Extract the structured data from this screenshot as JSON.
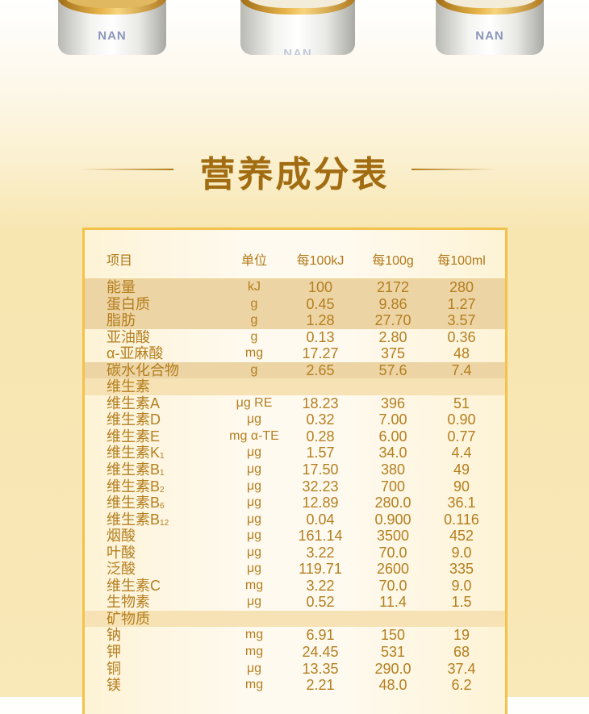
{
  "products": [
    {
      "brand": "NAN"
    },
    {
      "brand": "NAN"
    },
    {
      "brand": "NAN"
    }
  ],
  "title": "营养成分表",
  "colors": {
    "accent": "#a26d12",
    "border": "#f3c24c",
    "highlight": "#ecd4a4"
  },
  "table": {
    "headers": [
      "项目",
      "单位",
      "每100kJ",
      "每100g",
      "每100ml"
    ],
    "rows": [
      {
        "name": "能量",
        "sub": "",
        "unit": "kJ",
        "per100kJ": "100",
        "per100g": "2172",
        "per100ml": "280",
        "style": "hl"
      },
      {
        "name": "蛋白质",
        "sub": "",
        "unit": "g",
        "per100kJ": "0.45",
        "per100g": "9.86",
        "per100ml": "1.27",
        "style": "hl"
      },
      {
        "name": "脂肪",
        "sub": "",
        "unit": "g",
        "per100kJ": "1.28",
        "per100g": "27.70",
        "per100ml": "3.57",
        "style": "hl"
      },
      {
        "name": "亚油酸",
        "sub": "",
        "unit": "g",
        "per100kJ": "0.13",
        "per100g": "2.80",
        "per100ml": "0.36",
        "style": ""
      },
      {
        "name": "α-亚麻酸",
        "sub": "",
        "unit": "mg",
        "per100kJ": "17.27",
        "per100g": "375",
        "per100ml": "48",
        "style": ""
      },
      {
        "name": "碳水化合物",
        "sub": "",
        "unit": "g",
        "per100kJ": "2.65",
        "per100g": "57.6",
        "per100ml": "7.4",
        "style": "hl"
      },
      {
        "name": "维生素",
        "sub": "",
        "unit": "",
        "per100kJ": "",
        "per100g": "",
        "per100ml": "",
        "style": "sec"
      },
      {
        "name": "维生素A",
        "sub": "",
        "unit": "μg RE",
        "per100kJ": "18.23",
        "per100g": "396",
        "per100ml": "51",
        "style": ""
      },
      {
        "name": "维生素D",
        "sub": "",
        "unit": "μg",
        "per100kJ": "0.32",
        "per100g": "7.00",
        "per100ml": "0.90",
        "style": ""
      },
      {
        "name": "维生素E",
        "sub": "",
        "unit": "mg α-TE",
        "per100kJ": "0.28",
        "per100g": "6.00",
        "per100ml": "0.77",
        "style": ""
      },
      {
        "name": "维生素K",
        "sub": "1",
        "unit": "μg",
        "per100kJ": "1.57",
        "per100g": "34.0",
        "per100ml": "4.4",
        "style": ""
      },
      {
        "name": "维生素B",
        "sub": "1",
        "unit": "μg",
        "per100kJ": "17.50",
        "per100g": "380",
        "per100ml": "49",
        "style": ""
      },
      {
        "name": "维生素B",
        "sub": "2",
        "unit": "μg",
        "per100kJ": "32.23",
        "per100g": "700",
        "per100ml": "90",
        "style": ""
      },
      {
        "name": "维生素B",
        "sub": "6",
        "unit": "μg",
        "per100kJ": "12.89",
        "per100g": "280.0",
        "per100ml": "36.1",
        "style": ""
      },
      {
        "name": "维生素B",
        "sub": "12",
        "unit": "μg",
        "per100kJ": "0.04",
        "per100g": "0.900",
        "per100ml": "0.116",
        "style": ""
      },
      {
        "name": "烟酸",
        "sub": "",
        "unit": "μg",
        "per100kJ": "161.14",
        "per100g": "3500",
        "per100ml": "452",
        "style": ""
      },
      {
        "name": "叶酸",
        "sub": "",
        "unit": "μg",
        "per100kJ": "3.22",
        "per100g": "70.0",
        "per100ml": "9.0",
        "style": ""
      },
      {
        "name": "泛酸",
        "sub": "",
        "unit": "μg",
        "per100kJ": "119.71",
        "per100g": "2600",
        "per100ml": "335",
        "style": ""
      },
      {
        "name": "维生素C",
        "sub": "",
        "unit": "mg",
        "per100kJ": "3.22",
        "per100g": "70.0",
        "per100ml": "9.0",
        "style": ""
      },
      {
        "name": "生物素",
        "sub": "",
        "unit": "μg",
        "per100kJ": "0.52",
        "per100g": "11.4",
        "per100ml": "1.5",
        "style": ""
      },
      {
        "name": "矿物质",
        "sub": "",
        "unit": "",
        "per100kJ": "",
        "per100g": "",
        "per100ml": "",
        "style": "sec"
      },
      {
        "name": "钠",
        "sub": "",
        "unit": "mg",
        "per100kJ": "6.91",
        "per100g": "150",
        "per100ml": "19",
        "style": ""
      },
      {
        "name": "钾",
        "sub": "",
        "unit": "mg",
        "per100kJ": "24.45",
        "per100g": "531",
        "per100ml": "68",
        "style": ""
      },
      {
        "name": "铜",
        "sub": "",
        "unit": "μg",
        "per100kJ": "13.35",
        "per100g": "290.0",
        "per100ml": "37.4",
        "style": ""
      },
      {
        "name": "镁",
        "sub": "",
        "unit": "mg",
        "per100kJ": "2.21",
        "per100g": "48.0",
        "per100ml": "6.2",
        "style": ""
      }
    ]
  }
}
